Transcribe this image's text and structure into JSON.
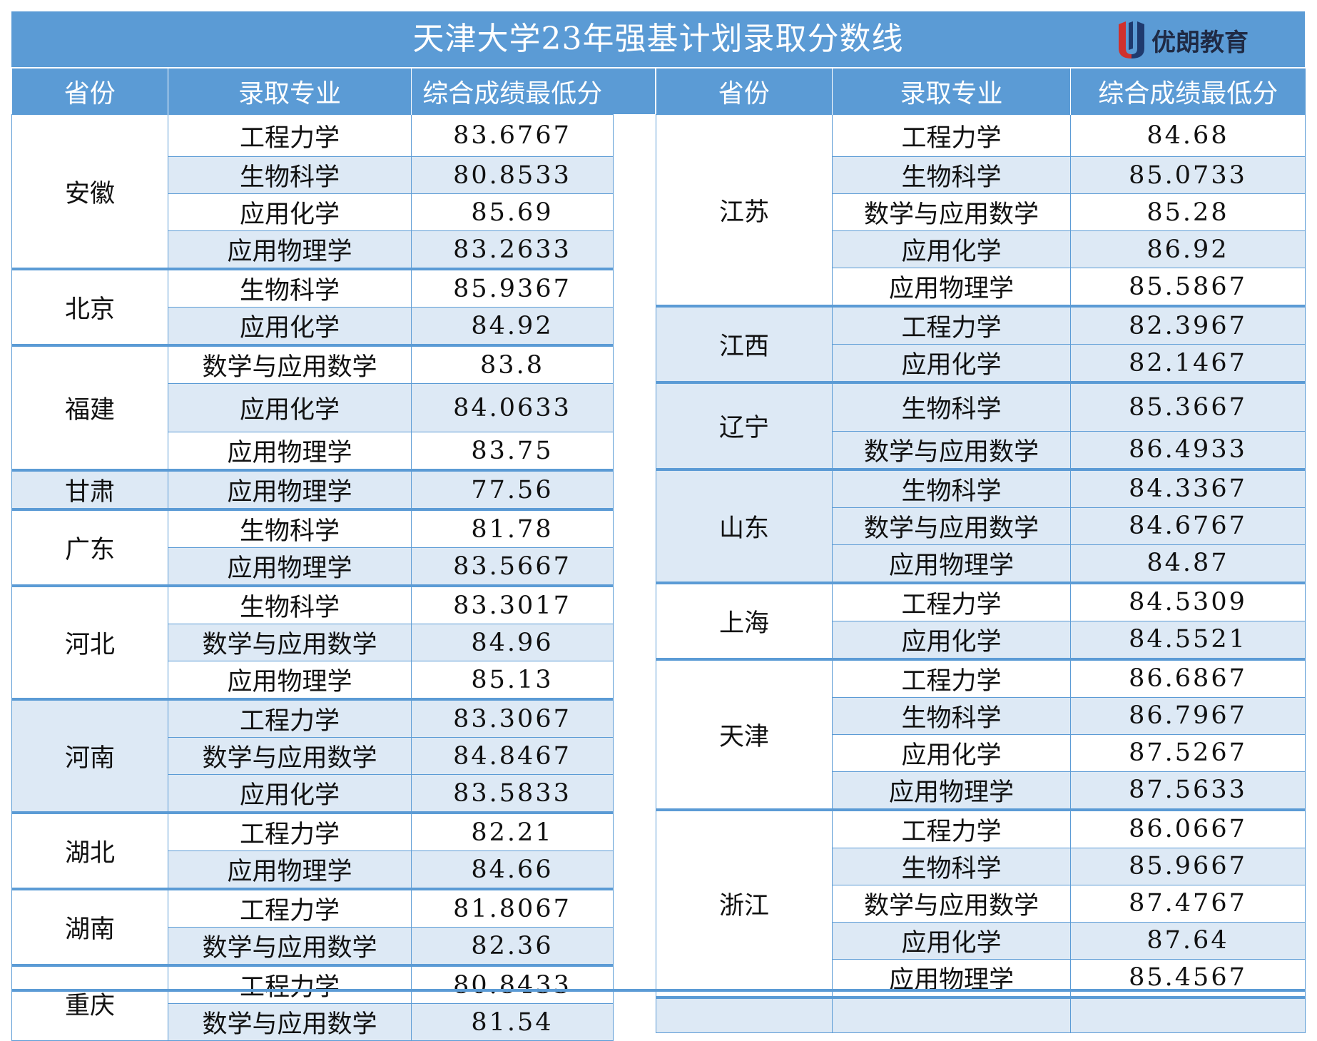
{
  "title": "天津大学23年强基计划录取分数线",
  "logo": {
    "text": "优朗教育",
    "colors": {
      "red": "#d0312d",
      "navy": "#1f3a6e"
    }
  },
  "colors": {
    "header": "#5b9bd5",
    "shade": "#dde9f5",
    "border": "#5b9bd5"
  },
  "headers": {
    "province": "省份",
    "major": "录取专业",
    "score": "综合成绩最低分"
  },
  "left": [
    {
      "province": "安徽",
      "shaded": false,
      "rows": [
        [
          "工程力学",
          "83.6767"
        ],
        [
          "生物科学",
          "80.8533"
        ],
        [
          "应用化学",
          "85.69"
        ],
        [
          "应用物理学",
          "83.2633"
        ]
      ]
    },
    {
      "province": "北京",
      "shaded": false,
      "rows": [
        [
          "生物科学",
          "85.9367"
        ],
        [
          "应用化学",
          "84.92"
        ]
      ]
    },
    {
      "province": "福建",
      "shaded": false,
      "rows": [
        [
          "数学与应用数学",
          "83.8"
        ],
        [
          "应用化学",
          "84.0633"
        ],
        [
          "应用物理学",
          "83.75"
        ]
      ]
    },
    {
      "province": "甘肃",
      "shaded": true,
      "rows": [
        [
          "应用物理学",
          "77.56"
        ]
      ]
    },
    {
      "province": "广东",
      "shaded": false,
      "rows": [
        [
          "生物科学",
          "81.78"
        ],
        [
          "应用物理学",
          "83.5667"
        ]
      ]
    },
    {
      "province": "河北",
      "shaded": false,
      "rows": [
        [
          "生物科学",
          "83.3017"
        ],
        [
          "数学与应用数学",
          "84.96"
        ],
        [
          "应用物理学",
          "85.13"
        ]
      ]
    },
    {
      "province": "河南",
      "shaded": true,
      "rows": [
        [
          "工程力学",
          "83.3067"
        ],
        [
          "数学与应用数学",
          "84.8467"
        ],
        [
          "应用化学",
          "83.5833"
        ]
      ]
    },
    {
      "province": "湖北",
      "shaded": false,
      "rows": [
        [
          "工程力学",
          "82.21"
        ],
        [
          "应用物理学",
          "84.66"
        ]
      ]
    },
    {
      "province": "湖南",
      "shaded": false,
      "rows": [
        [
          "工程力学",
          "81.8067"
        ],
        [
          "数学与应用数学",
          "82.36"
        ]
      ]
    },
    {
      "province": "重庆",
      "shaded": false,
      "rows": [
        [
          "工程力学",
          "80.8433"
        ],
        [
          "数学与应用数学",
          "81.54"
        ]
      ]
    }
  ],
  "right": [
    {
      "province": "江苏",
      "shaded": false,
      "rows": [
        [
          "工程力学",
          "84.68"
        ],
        [
          "生物科学",
          "85.0733"
        ],
        [
          "数学与应用数学",
          "85.28"
        ],
        [
          "应用化学",
          "86.92"
        ],
        [
          "应用物理学",
          "85.5867"
        ]
      ]
    },
    {
      "province": "江西",
      "shaded": true,
      "rows": [
        [
          "工程力学",
          "82.3967"
        ],
        [
          "应用化学",
          "82.1467"
        ]
      ]
    },
    {
      "province": "辽宁",
      "shaded": true,
      "rows": [
        [
          "生物科学",
          "85.3667"
        ],
        [
          "数学与应用数学",
          "86.4933"
        ]
      ]
    },
    {
      "province": "山东",
      "shaded": true,
      "rows": [
        [
          "生物科学",
          "84.3367"
        ],
        [
          "数学与应用数学",
          "84.6767"
        ],
        [
          "应用物理学",
          "84.87"
        ]
      ]
    },
    {
      "province": "上海",
      "shaded": false,
      "rows": [
        [
          "工程力学",
          "84.5309"
        ],
        [
          "应用化学",
          "84.5521"
        ]
      ]
    },
    {
      "province": "天津",
      "shaded": false,
      "rows": [
        [
          "工程力学",
          "86.6867"
        ],
        [
          "生物科学",
          "86.7967"
        ],
        [
          "应用化学",
          "87.5267"
        ],
        [
          "应用物理学",
          "87.5633"
        ]
      ]
    },
    {
      "province": "浙江",
      "shaded": false,
      "rows": [
        [
          "工程力学",
          "86.0667"
        ],
        [
          "生物科学",
          "85.9667"
        ],
        [
          "数学与应用数学",
          "87.4767"
        ],
        [
          "应用化学",
          "87.64"
        ],
        [
          "应用物理学",
          "85.4567"
        ]
      ]
    },
    {
      "province": "",
      "shaded": true,
      "rows": [
        [
          "",
          ""
        ]
      ]
    }
  ]
}
